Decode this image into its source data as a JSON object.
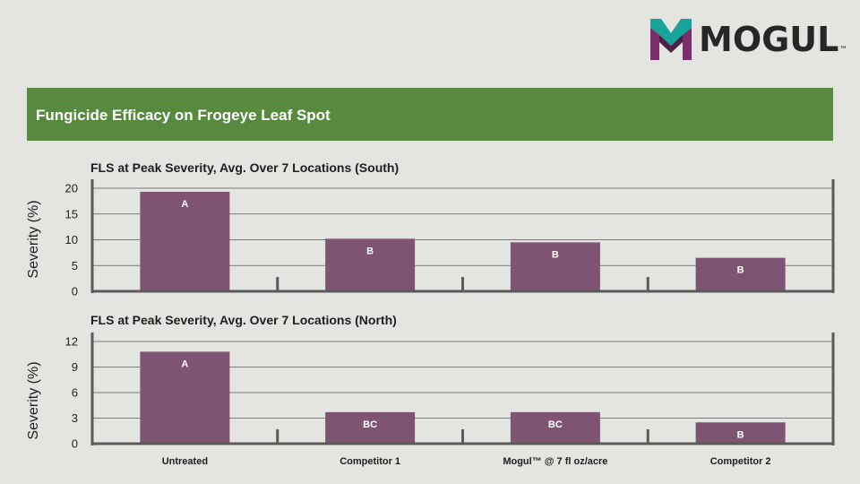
{
  "logo": {
    "text": "MOGUL",
    "tm": "™",
    "colors": {
      "teal": "#1aa39a",
      "purple": "#7b2f6e",
      "dark": "#262626"
    }
  },
  "banner": {
    "title": "Fungicide Efficacy on Frogeye Leaf Spot",
    "color": "#578a3e"
  },
  "chart_data": [
    {
      "type": "bar",
      "title": "FLS at Peak Severity, Avg. Over 7 Locations (South)",
      "ylabel": "Severity (%)",
      "ylim": [
        0,
        20
      ],
      "yticks": [
        0,
        5,
        10,
        15,
        20
      ],
      "grid": true,
      "categories": [
        "Untreated",
        "Competitor 1",
        "Mogul™ @ 7 fl oz/acre",
        "Competitor 2"
      ],
      "values": [
        19.3,
        10.2,
        9.5,
        6.5
      ],
      "labels": [
        "A",
        "B",
        "B",
        "B"
      ],
      "bar_color": "#7f5472"
    },
    {
      "type": "bar",
      "title": "FLS at Peak Severity, Avg. Over 7 Locations (North)",
      "ylabel": "Severity (%)",
      "ylim": [
        0,
        12
      ],
      "yticks": [
        0,
        3,
        6,
        9,
        12
      ],
      "grid": true,
      "categories": [
        "Untreated",
        "Competitor 1",
        "Mogul™ @ 7 fl oz/acre",
        "Competitor 2"
      ],
      "values": [
        10.8,
        3.7,
        3.7,
        2.5
      ],
      "labels": [
        "A",
        "BC",
        "BC",
        "B"
      ],
      "bar_color": "#7f5472"
    }
  ]
}
